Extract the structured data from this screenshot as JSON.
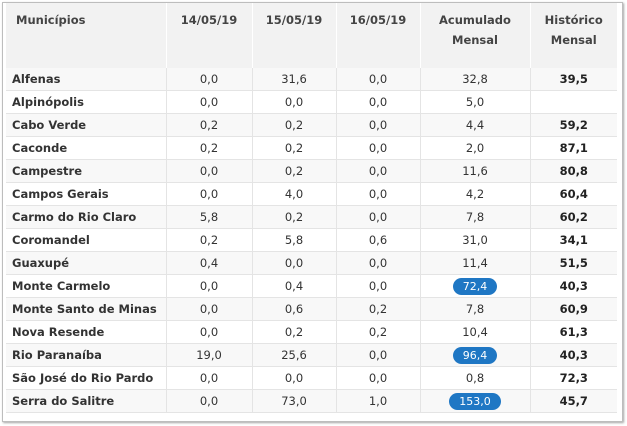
{
  "table": {
    "headers": {
      "municipio": "Municípios",
      "d1": "14/05/19",
      "d2": "15/05/19",
      "d3": "16/05/19",
      "acum_line1": "Acumulado",
      "acum_line2": "Mensal",
      "hist_line1": "Histórico",
      "hist_line2": "Mensal"
    },
    "rows": [
      {
        "name": "Alfenas",
        "d1": "0,0",
        "d2": "31,6",
        "d3": "0,0",
        "acumulado": "32,8",
        "historico": "39,5",
        "highlight": false
      },
      {
        "name": "Alpinópolis",
        "d1": "0,0",
        "d2": "0,0",
        "d3": "0,0",
        "acumulado": "5,0",
        "historico": "",
        "highlight": false
      },
      {
        "name": "Cabo Verde",
        "d1": "0,2",
        "d2": "0,2",
        "d3": "0,0",
        "acumulado": "4,4",
        "historico": "59,2",
        "highlight": false
      },
      {
        "name": "Caconde",
        "d1": "0,2",
        "d2": "0,2",
        "d3": "0,0",
        "acumulado": "2,0",
        "historico": "87,1",
        "highlight": false
      },
      {
        "name": "Campestre",
        "d1": "0,0",
        "d2": "0,2",
        "d3": "0,0",
        "acumulado": "11,6",
        "historico": "80,8",
        "highlight": false
      },
      {
        "name": "Campos Gerais",
        "d1": "0,0",
        "d2": "4,0",
        "d3": "0,0",
        "acumulado": "4,2",
        "historico": "60,4",
        "highlight": false
      },
      {
        "name": "Carmo do Rio Claro",
        "d1": "5,8",
        "d2": "0,2",
        "d3": "0,0",
        "acumulado": "7,8",
        "historico": "60,2",
        "highlight": false
      },
      {
        "name": "Coromandel",
        "d1": "0,2",
        "d2": "5,8",
        "d3": "0,6",
        "acumulado": "31,0",
        "historico": "34,1",
        "highlight": false
      },
      {
        "name": "Guaxupé",
        "d1": "0,4",
        "d2": "0,0",
        "d3": "0,0",
        "acumulado": "11,4",
        "historico": "51,5",
        "highlight": false
      },
      {
        "name": "Monte Carmelo",
        "d1": "0,0",
        "d2": "0,4",
        "d3": "0,0",
        "acumulado": "72,4",
        "historico": "40,3",
        "highlight": true
      },
      {
        "name": "Monte Santo de Minas",
        "d1": "0,0",
        "d2": "0,6",
        "d3": "0,2",
        "acumulado": "7,8",
        "historico": "60,9",
        "highlight": false
      },
      {
        "name": "Nova Resende",
        "d1": "0,0",
        "d2": "0,2",
        "d3": "0,2",
        "acumulado": "10,4",
        "historico": "61,3",
        "highlight": false
      },
      {
        "name": "Rio Paranaíba",
        "d1": "19,0",
        "d2": "25,6",
        "d3": "0,0",
        "acumulado": "96,4",
        "historico": "40,3",
        "highlight": true
      },
      {
        "name": "São José do Rio Pardo",
        "d1": "0,0",
        "d2": "0,0",
        "d3": "0,0",
        "acumulado": "0,8",
        "historico": "72,3",
        "highlight": false
      },
      {
        "name": "Serra do Salitre",
        "d1": "0,0",
        "d2": "73,0",
        "d3": "1,0",
        "acumulado": "153,0",
        "historico": "45,7",
        "highlight": true
      }
    ]
  },
  "colors": {
    "badge": "#1f77c4",
    "header_bg": "#f2f2f2",
    "row_stripe": "#f8f8f8"
  }
}
